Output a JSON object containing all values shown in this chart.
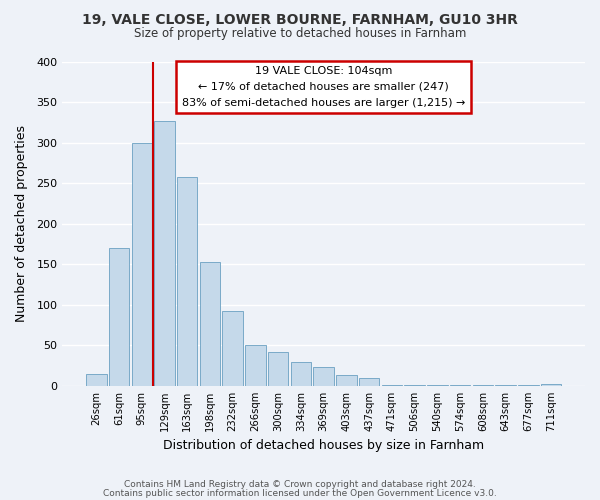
{
  "title": "19, VALE CLOSE, LOWER BOURNE, FARNHAM, GU10 3HR",
  "subtitle": "Size of property relative to detached houses in Farnham",
  "xlabel": "Distribution of detached houses by size in Farnham",
  "ylabel": "Number of detached properties",
  "bar_color": "#c5d9ea",
  "bar_edge_color": "#7aaac8",
  "background_color": "#eef2f8",
  "grid_color": "#ffffff",
  "categories": [
    "26sqm",
    "61sqm",
    "95sqm",
    "129sqm",
    "163sqm",
    "198sqm",
    "232sqm",
    "266sqm",
    "300sqm",
    "334sqm",
    "369sqm",
    "403sqm",
    "437sqm",
    "471sqm",
    "506sqm",
    "540sqm",
    "574sqm",
    "608sqm",
    "643sqm",
    "677sqm",
    "711sqm"
  ],
  "values": [
    15,
    170,
    300,
    327,
    258,
    153,
    92,
    50,
    42,
    29,
    23,
    13,
    10,
    1,
    1,
    1,
    1,
    1,
    1,
    1,
    2
  ],
  "ylim": [
    0,
    400
  ],
  "yticks": [
    0,
    50,
    100,
    150,
    200,
    250,
    300,
    350,
    400
  ],
  "property_line_color": "#cc0000",
  "annotation_line1": "19 VALE CLOSE: 104sqm",
  "annotation_line2": "← 17% of detached houses are smaller (247)",
  "annotation_line3": "83% of semi-detached houses are larger (1,215) →",
  "footer_line1": "Contains HM Land Registry data © Crown copyright and database right 2024.",
  "footer_line2": "Contains public sector information licensed under the Open Government Licence v3.0."
}
